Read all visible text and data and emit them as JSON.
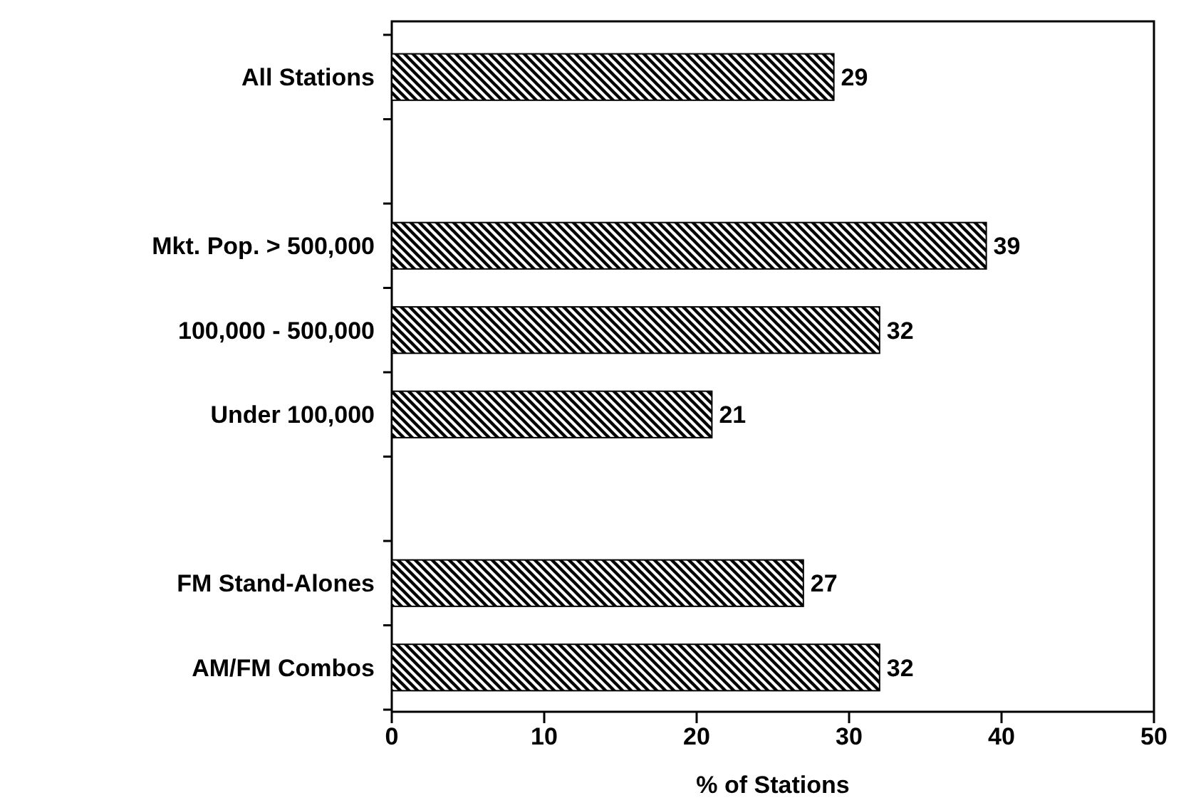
{
  "chart_data": {
    "type": "bar",
    "orientation": "horizontal",
    "xlabel": "% of Stations",
    "categories": [
      "All Stations",
      null,
      "Mkt. Pop. > 500,000",
      "100,000 - 500,000",
      "Under 100,000",
      null,
      "FM Stand-Alones",
      "AM/FM Combos"
    ],
    "values": [
      29,
      null,
      39,
      32,
      21,
      null,
      27,
      32
    ],
    "color": "#000000",
    "xlim": [
      0,
      50
    ],
    "xticks": [
      0,
      10,
      20,
      30,
      40,
      50
    ],
    "data_labels": true
  }
}
